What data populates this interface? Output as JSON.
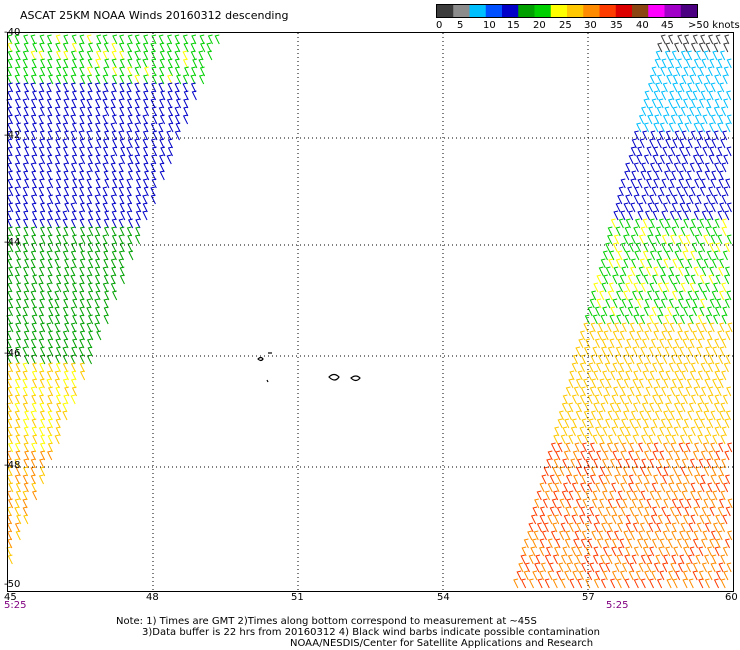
{
  "title": "ASCAT 25KM NOAA Winds 20160312 descending",
  "legend": {
    "colors": [
      "#3c3c3c",
      "#8c8c8c",
      "#00bfff",
      "#0050ff",
      "#0000c8",
      "#00a000",
      "#00d000",
      "#ffff00",
      "#ffc800",
      "#ff8c00",
      "#ff3c00",
      "#dc0000",
      "#8b4513",
      "#ff00ff",
      "#a000c8",
      "#4b0082"
    ],
    "labels": [
      "0",
      "5",
      "10",
      "15",
      "20",
      "25",
      "30",
      "35",
      "40",
      "45",
      ">50 knots"
    ]
  },
  "map": {
    "lon_ticks": [
      "45",
      "48",
      "51",
      "54",
      "57",
      "60"
    ],
    "lat_ticks": [
      "-40",
      "-42",
      "-44",
      "-46",
      "-48",
      "-50"
    ],
    "time_left": "5:25",
    "time_right": "5:25"
  },
  "notes": {
    "line1": "Note: 1) Times are GMT 2)Times along bottom correspond to measurement at ~45S",
    "line2": "3)Data buffer is 22 hrs from 20160312 4) Black wind barbs indicate possible contamination",
    "line3": "NOAA/NESDIS/Center for Satellite Applications and Research"
  }
}
